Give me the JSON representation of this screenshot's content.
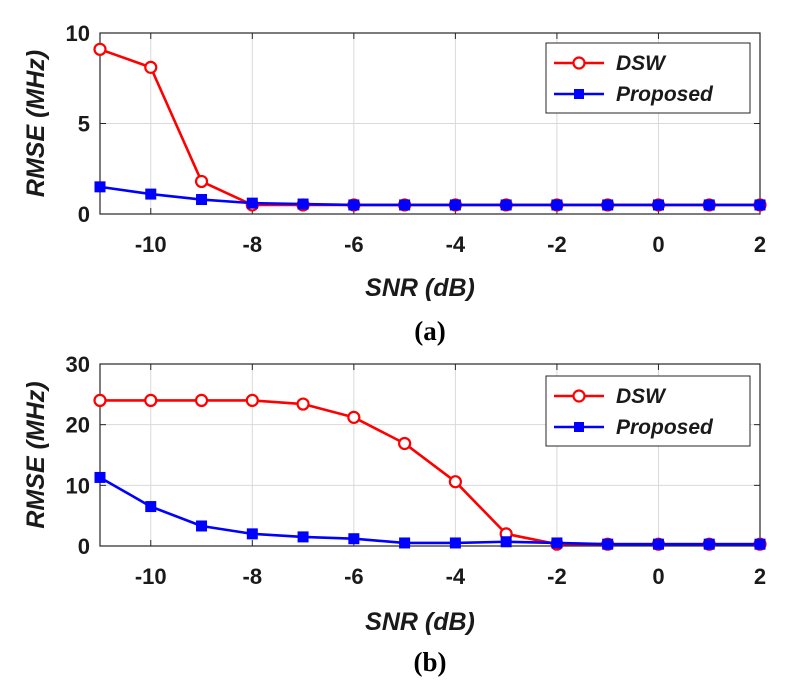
{
  "chart_data": [
    {
      "type": "line",
      "panel": "(a)",
      "caption": "(a)",
      "xlabel": "SNR (dB)",
      "ylabel": "RMSE (MHz)",
      "xlim": [
        -11,
        2
      ],
      "ylim": [
        0,
        10
      ],
      "xticks": [
        -10,
        -8,
        -6,
        -4,
        -2,
        0,
        2
      ],
      "yticks": [
        0,
        5,
        10
      ],
      "grid": true,
      "legend_position": "top-right",
      "x": [
        -11,
        -10,
        -9,
        -8,
        -7,
        -6,
        -5,
        -4,
        -3,
        -2,
        -1,
        0,
        1,
        2
      ],
      "series": [
        {
          "name": "DSW",
          "color": "#ff0000",
          "marker": "circle",
          "values": [
            9.1,
            8.1,
            1.8,
            0.5,
            0.5,
            0.5,
            0.5,
            0.5,
            0.5,
            0.5,
            0.5,
            0.5,
            0.5,
            0.5
          ]
        },
        {
          "name": "Proposed",
          "color": "#0000ff",
          "marker": "square",
          "values": [
            1.5,
            1.1,
            0.8,
            0.6,
            0.55,
            0.5,
            0.5,
            0.5,
            0.5,
            0.5,
            0.5,
            0.5,
            0.5,
            0.5
          ]
        }
      ]
    },
    {
      "type": "line",
      "panel": "(b)",
      "caption": "(b)",
      "xlabel": "SNR (dB)",
      "ylabel": "RMSE (MHz)",
      "xlim": [
        -11,
        2
      ],
      "ylim": [
        0,
        30
      ],
      "xticks": [
        -10,
        -8,
        -6,
        -4,
        -2,
        0,
        2
      ],
      "yticks": [
        0,
        10,
        20,
        30
      ],
      "grid": true,
      "legend_position": "top-right",
      "x": [
        -11,
        -10,
        -9,
        -8,
        -7,
        -6,
        -5,
        -4,
        -3,
        -2,
        -1,
        0,
        1,
        2
      ],
      "series": [
        {
          "name": "DSW",
          "color": "#ff0000",
          "marker": "circle",
          "values": [
            24,
            24,
            24,
            24,
            23.4,
            21.2,
            16.9,
            10.6,
            2,
            0.3,
            0.3,
            0.3,
            0.3,
            0.3
          ]
        },
        {
          "name": "Proposed",
          "color": "#0000ff",
          "marker": "square",
          "values": [
            11.3,
            6.5,
            3.3,
            2,
            1.5,
            1.2,
            0.5,
            0.5,
            0.7,
            0.5,
            0.3,
            0.3,
            0.3,
            0.3
          ]
        }
      ]
    }
  ]
}
